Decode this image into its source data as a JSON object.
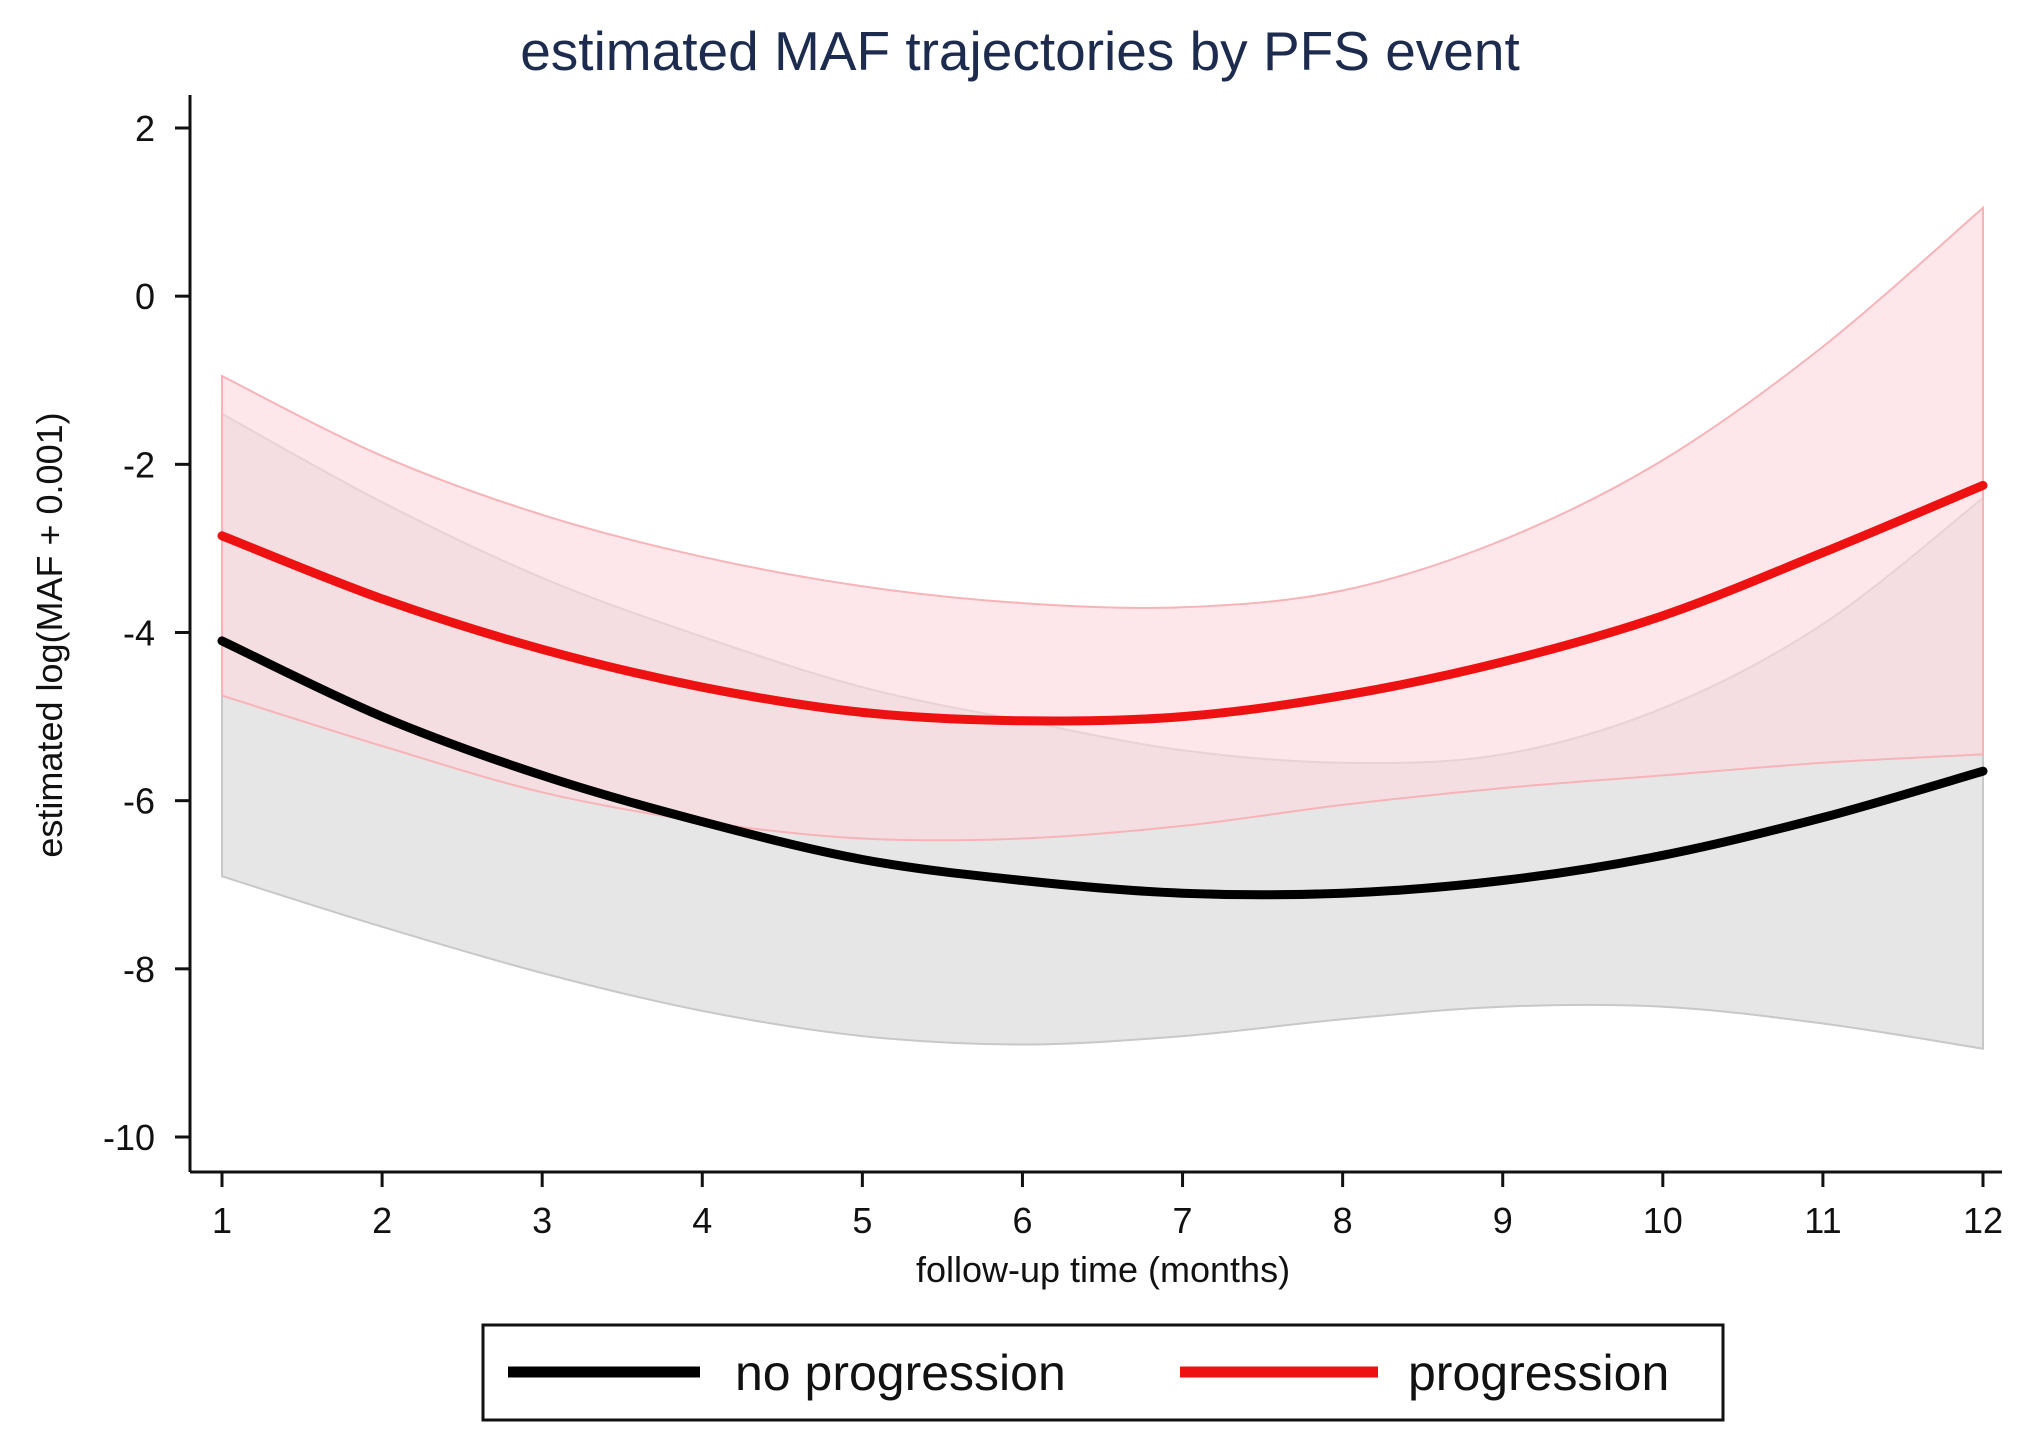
{
  "chart_data": {
    "type": "line",
    "title": "estimated MAF trajectories by PFS event",
    "xlabel": "follow-up time (months)",
    "ylabel": "estimated log(MAF + 0.001)",
    "xlim": [
      1,
      12
    ],
    "ylim": [
      -10,
      2
    ],
    "x": [
      1,
      2,
      3,
      4,
      5,
      6,
      7,
      8,
      9,
      10,
      11,
      12
    ],
    "xticks": [
      "1",
      "2",
      "3",
      "4",
      "5",
      "6",
      "7",
      "8",
      "9",
      "10",
      "11",
      "12"
    ],
    "yticks": [
      "2",
      "0",
      "-2",
      "-4",
      "-6",
      "-8",
      "-10"
    ],
    "ytick_values": [
      2,
      0,
      -2,
      -4,
      -6,
      -8,
      -10
    ],
    "legend_position": "bottom-center",
    "grid": false,
    "series": [
      {
        "name": "no progression",
        "color": "#000000",
        "band_color": "#e6e6e6",
        "band_edge_color": "#c8c8c8",
        "values": [
          -4.1,
          -5.0,
          -5.7,
          -6.25,
          -6.7,
          -6.95,
          -7.1,
          -7.1,
          -6.95,
          -6.65,
          -6.2,
          -5.65
        ],
        "ci_upper": [
          -1.4,
          -2.45,
          -3.35,
          -4.05,
          -4.65,
          -5.05,
          -5.4,
          -5.55,
          -5.45,
          -4.9,
          -3.9,
          -2.4
        ],
        "ci_lower": [
          -6.9,
          -7.5,
          -8.05,
          -8.5,
          -8.8,
          -8.9,
          -8.8,
          -8.6,
          -8.45,
          -8.45,
          -8.65,
          -8.95
        ]
      },
      {
        "name": "progression",
        "color": "#ee1111",
        "band_color": "#fcd9de",
        "band_edge_color": "#f7b3b8",
        "values": [
          -2.85,
          -3.6,
          -4.2,
          -4.65,
          -4.95,
          -5.05,
          -5.0,
          -4.75,
          -4.35,
          -3.8,
          -3.05,
          -2.25
        ],
        "ci_upper": [
          -0.95,
          -1.9,
          -2.6,
          -3.1,
          -3.45,
          -3.65,
          -3.7,
          -3.5,
          -2.9,
          -1.95,
          -0.6,
          1.05
        ],
        "ci_lower": [
          -4.75,
          -5.35,
          -5.9,
          -6.25,
          -6.45,
          -6.45,
          -6.3,
          -6.05,
          -5.85,
          -5.7,
          -5.55,
          -5.45
        ]
      }
    ]
  }
}
